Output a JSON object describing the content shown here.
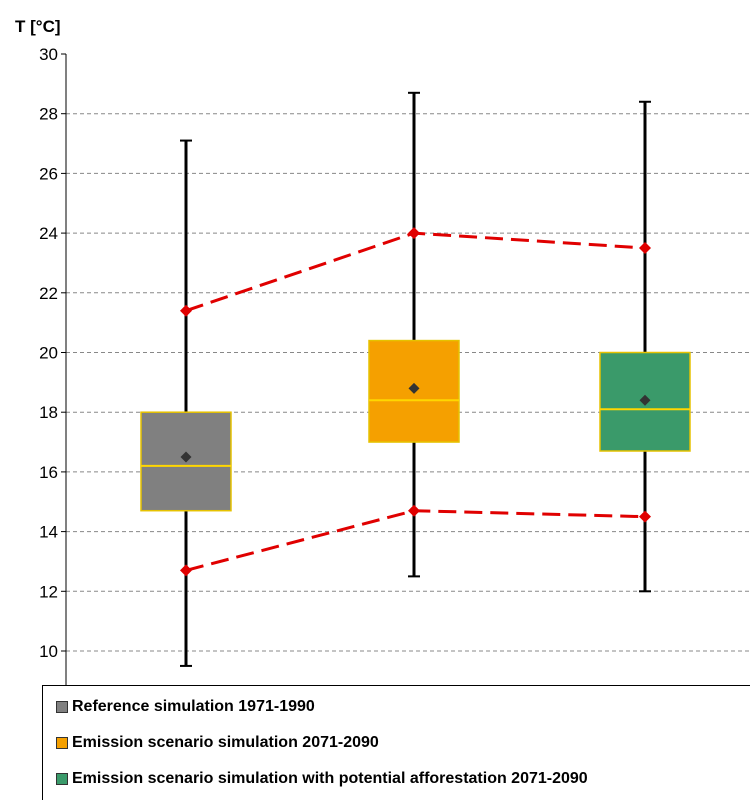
{
  "chart_data": {
    "type": "boxplot",
    "title": "",
    "xlabel": "",
    "ylabel": "T [°C]",
    "ylim": [
      9,
      30
    ],
    "yticks": [
      10,
      12,
      14,
      16,
      18,
      20,
      22,
      24,
      26,
      28,
      30
    ],
    "grid": true,
    "legend_position": "bottom",
    "series": [
      {
        "name": "Reference simulation 1971-1990",
        "color": "#808080",
        "min": 9.5,
        "q1": 14.7,
        "median": 16.2,
        "q3": 18.0,
        "max": 27.1,
        "mean": 16.5,
        "upper_marker": 21.4,
        "lower_marker": 12.7
      },
      {
        "name": "Emission scenario simulation 2071-2090",
        "color": "#f5a000",
        "min": 12.5,
        "q1": 17.0,
        "median": 18.4,
        "q3": 20.4,
        "max": 28.7,
        "mean": 18.8,
        "upper_marker": 24.0,
        "lower_marker": 14.7
      },
      {
        "name": "Emission scenario simulation with potential afforestation 2071-2090",
        "color": "#3a9a6a",
        "min": 12.0,
        "q1": 16.7,
        "median": 18.1,
        "q3": 20.0,
        "max": 28.4,
        "mean": 18.4,
        "upper_marker": 23.5,
        "lower_marker": 14.5
      }
    ],
    "median_color": "#ffd700",
    "box_border_color": "#e6c200",
    "marker_line_color": "#e00000",
    "mean_marker_color": "#333333"
  }
}
